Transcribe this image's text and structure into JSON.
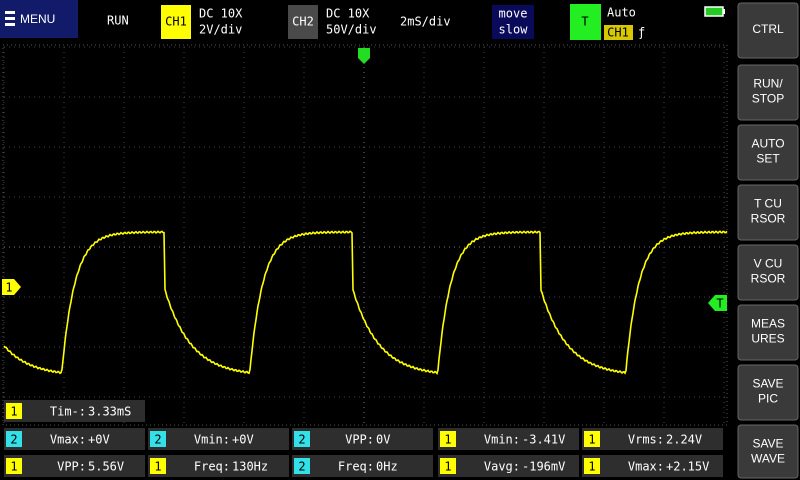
{
  "header": {
    "menu": "MENU",
    "status": "RUN",
    "ch1": {
      "label": "CH1",
      "coupling": "DC 10X",
      "scale": "2V/div"
    },
    "ch2": {
      "label": "CH2",
      "coupling": "DC 10X",
      "scale": "50V/div"
    },
    "timebase": "2mS/div",
    "move": [
      "move",
      "slow"
    ],
    "trigger": {
      "label": "T",
      "mode": "Auto",
      "source": "CH1",
      "edge": "ƒ"
    }
  },
  "markers": {
    "ch1": "1",
    "trigger": "T"
  },
  "buttons": [
    [
      "CTRL"
    ],
    [
      "RUN/",
      "STOP"
    ],
    [
      "AUTO",
      "SET"
    ],
    [
      "T CU",
      "RSOR"
    ],
    [
      "V CU",
      "RSOR"
    ],
    [
      "MEAS",
      "URES"
    ],
    [
      "SAVE",
      "PIC"
    ],
    [
      "SAVE",
      "WAVE"
    ]
  ],
  "measurements": [
    [
      {
        "channel": "1",
        "label": "Tim-:",
        "value": "3.33mS"
      }
    ],
    [
      {
        "channel": "2",
        "label": "Vmax:",
        "value": "+0V"
      },
      {
        "channel": "2",
        "label": "Vmin:",
        "value": "+0V"
      },
      {
        "channel": "2",
        "label": "VPP:",
        "value": "0V"
      },
      {
        "channel": "1",
        "label": "Vmin:",
        "value": "-3.41V"
      },
      {
        "channel": "1",
        "label": "Vrms:",
        "value": "2.24V"
      }
    ],
    [
      {
        "channel": "1",
        "label": "VPP:",
        "value": "5.56V"
      },
      {
        "channel": "1",
        "label": "Freq:",
        "value": "130Hz"
      },
      {
        "channel": "2",
        "label": "Freq:",
        "value": "0Hz"
      },
      {
        "channel": "1",
        "label": "Vavg:",
        "value": "-196mV"
      },
      {
        "channel": "1",
        "label": "Vmax:",
        "value": "+2.15V"
      }
    ]
  ]
}
